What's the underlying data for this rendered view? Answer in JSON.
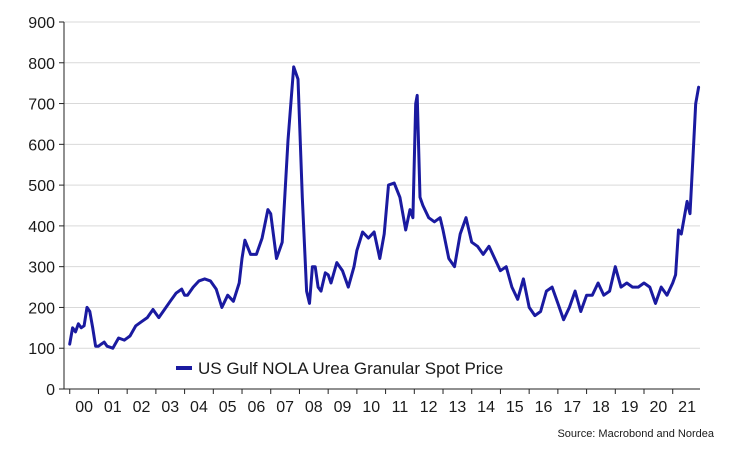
{
  "chart_data": {
    "type": "line",
    "title": "",
    "xlabel": "",
    "ylabel": "",
    "ylim": [
      0,
      900
    ],
    "xlim": [
      1999.8,
      2021.95
    ],
    "y_ticks": [
      0,
      100,
      200,
      300,
      400,
      500,
      600,
      700,
      800,
      900
    ],
    "x_ticks": [
      {
        "year": 2000,
        "label": "00"
      },
      {
        "year": 2001,
        "label": "01"
      },
      {
        "year": 2002,
        "label": "02"
      },
      {
        "year": 2003,
        "label": "03"
      },
      {
        "year": 2004,
        "label": "04"
      },
      {
        "year": 2005,
        "label": "05"
      },
      {
        "year": 2006,
        "label": "06"
      },
      {
        "year": 2007,
        "label": "07"
      },
      {
        "year": 2008,
        "label": "08"
      },
      {
        "year": 2009,
        "label": "09"
      },
      {
        "year": 2010,
        "label": "10"
      },
      {
        "year": 2011,
        "label": "11"
      },
      {
        "year": 2012,
        "label": "12"
      },
      {
        "year": 2013,
        "label": "13"
      },
      {
        "year": 2014,
        "label": "14"
      },
      {
        "year": 2015,
        "label": "15"
      },
      {
        "year": 2016,
        "label": "16"
      },
      {
        "year": 2017,
        "label": "17"
      },
      {
        "year": 2018,
        "label": "18"
      },
      {
        "year": 2019,
        "label": "19"
      },
      {
        "year": 2020,
        "label": "20"
      },
      {
        "year": 2021,
        "label": "21"
      }
    ],
    "grid": true,
    "legend_position": "bottom-left",
    "series": [
      {
        "name": "US Gulf NOLA Urea Granular Spot Price",
        "color": "#1a1aa0",
        "x": [
          2000.0,
          2000.1,
          2000.2,
          2000.3,
          2000.4,
          2000.5,
          2000.6,
          2000.7,
          2000.8,
          2000.9,
          2001.0,
          2001.1,
          2001.2,
          2001.3,
          2001.5,
          2001.7,
          2001.9,
          2002.1,
          2002.3,
          2002.5,
          2002.7,
          2002.9,
          2003.0,
          2003.1,
          2003.3,
          2003.5,
          2003.7,
          2003.9,
          2004.0,
          2004.1,
          2004.3,
          2004.5,
          2004.7,
          2004.9,
          2005.1,
          2005.3,
          2005.5,
          2005.7,
          2005.9,
          2006.0,
          2006.1,
          2006.3,
          2006.5,
          2006.7,
          2006.9,
          2007.0,
          2007.2,
          2007.4,
          2007.6,
          2007.8,
          2007.95,
          2008.1,
          2008.25,
          2008.35,
          2008.45,
          2008.55,
          2008.65,
          2008.75,
          2008.9,
          2009.0,
          2009.1,
          2009.3,
          2009.5,
          2009.7,
          2009.9,
          2010.0,
          2010.2,
          2010.4,
          2010.6,
          2010.8,
          2010.95,
          2011.1,
          2011.3,
          2011.5,
          2011.7,
          2011.85,
          2011.95,
          2012.05,
          2012.1,
          2012.2,
          2012.3,
          2012.5,
          2012.7,
          2012.9,
          2013.0,
          2013.2,
          2013.4,
          2013.6,
          2013.8,
          2014.0,
          2014.2,
          2014.4,
          2014.6,
          2014.8,
          2015.0,
          2015.2,
          2015.4,
          2015.6,
          2015.8,
          2016.0,
          2016.2,
          2016.4,
          2016.6,
          2016.8,
          2017.0,
          2017.2,
          2017.4,
          2017.6,
          2017.8,
          2018.0,
          2018.2,
          2018.4,
          2018.6,
          2018.8,
          2019.0,
          2019.2,
          2019.4,
          2019.6,
          2019.8,
          2020.0,
          2020.2,
          2020.4,
          2020.6,
          2020.8,
          2021.0,
          2021.1,
          2021.2,
          2021.3,
          2021.4,
          2021.5,
          2021.6,
          2021.7,
          2021.8,
          2021.9
        ],
        "values": [
          110,
          150,
          140,
          160,
          150,
          155,
          200,
          190,
          150,
          105,
          105,
          110,
          115,
          105,
          100,
          125,
          120,
          130,
          155,
          165,
          175,
          195,
          185,
          175,
          195,
          215,
          235,
          245,
          230,
          230,
          250,
          265,
          270,
          265,
          245,
          200,
          230,
          215,
          260,
          320,
          365,
          330,
          330,
          370,
          440,
          430,
          320,
          360,
          610,
          790,
          760,
          470,
          240,
          210,
          300,
          300,
          250,
          240,
          285,
          280,
          260,
          310,
          290,
          250,
          300,
          340,
          385,
          370,
          385,
          320,
          380,
          500,
          505,
          470,
          390,
          440,
          420,
          700,
          720,
          470,
          450,
          420,
          410,
          420,
          390,
          320,
          300,
          380,
          420,
          360,
          350,
          330,
          350,
          320,
          290,
          300,
          250,
          220,
          270,
          200,
          180,
          190,
          240,
          250,
          210,
          170,
          200,
          240,
          190,
          230,
          230,
          260,
          230,
          240,
          300,
          250,
          260,
          250,
          250,
          260,
          250,
          210,
          250,
          230,
          260,
          280,
          390,
          380,
          420,
          460,
          430,
          560,
          700,
          740
        ]
      }
    ],
    "legend_text": "US Gulf NOLA Urea Granular Spot Price",
    "source": "Source: Macrobond and Nordea"
  }
}
